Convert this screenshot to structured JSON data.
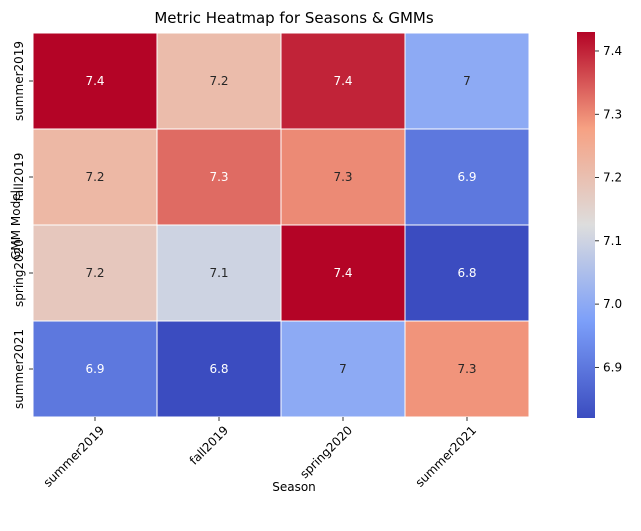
{
  "chart_data": {
    "type": "heatmap",
    "title": "Metric Heatmap for Seasons & GMMs",
    "xlabel": "Season",
    "ylabel": "GMM Model",
    "x_categories": [
      "summer2019",
      "fall2019",
      "spring2020",
      "summer2021"
    ],
    "y_categories": [
      "summer2019",
      "fall2019",
      "spring2020",
      "summer2021"
    ],
    "values": [
      [
        7.43,
        7.21,
        7.4,
        7.0
      ],
      [
        7.22,
        7.33,
        7.3,
        6.9
      ],
      [
        7.18,
        7.1,
        7.43,
        6.82
      ],
      [
        6.9,
        6.82,
        7.0,
        7.29
      ]
    ],
    "annotations": [
      [
        "7.4",
        "7.2",
        "7.4",
        "7"
      ],
      [
        "7.2",
        "7.3",
        "7.3",
        "6.9"
      ],
      [
        "7.2",
        "7.1",
        "7.4",
        "6.8"
      ],
      [
        "6.9",
        "6.8",
        "7",
        "7.3"
      ]
    ],
    "colormap": "coolwarm",
    "vmin": 6.82,
    "vmax": 7.43,
    "colorbar_ticks": [
      6.9,
      7.0,
      7.1,
      7.2,
      7.3,
      7.4
    ],
    "colorbar_tick_labels": [
      "6.9",
      "7.0",
      "7.1",
      "7.2",
      "7.3",
      "7.4"
    ]
  }
}
